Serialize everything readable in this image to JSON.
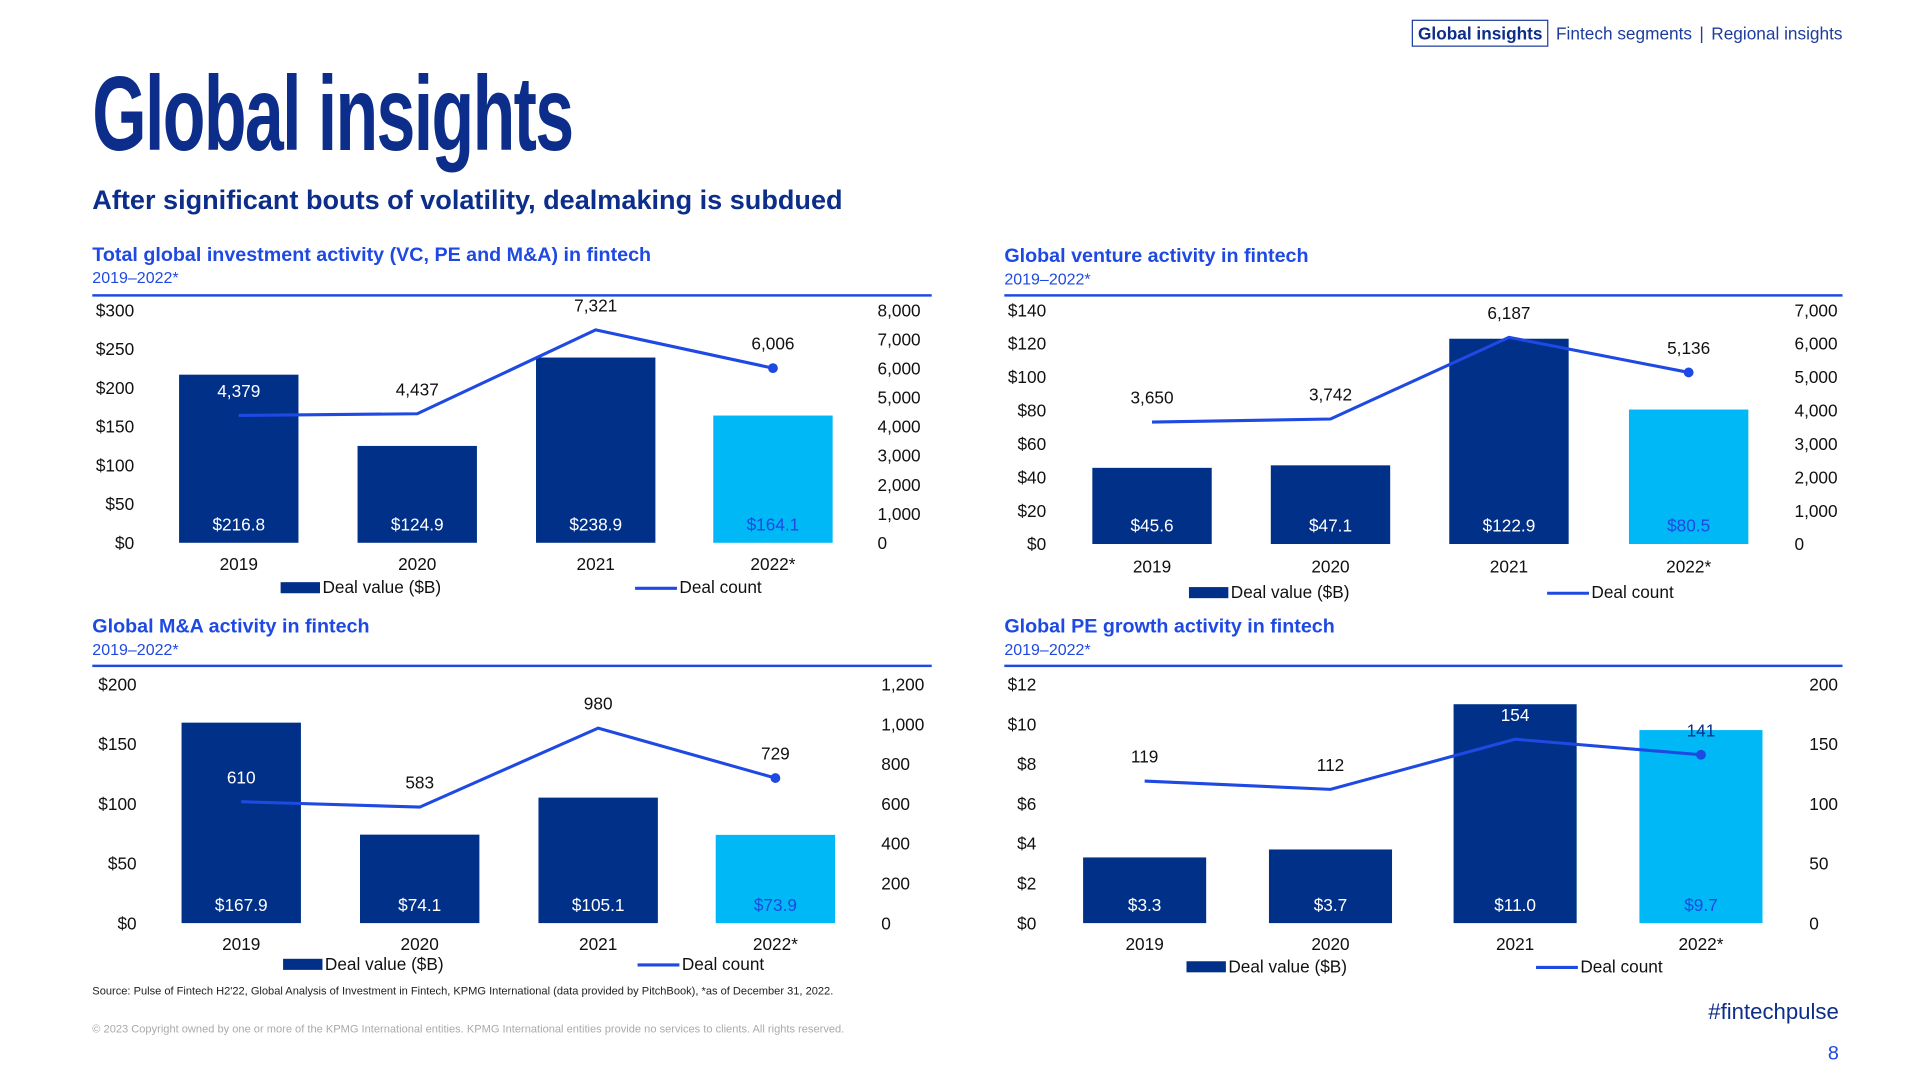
{
  "nav": {
    "items": [
      "Global insights",
      "Fintech segments",
      "Regional insights"
    ],
    "separator": "|",
    "active": 0
  },
  "page_title": "Global insights",
  "subtitle": "After significant bouts of volatility, dealmaking is subdued",
  "colors": {
    "navy": "#003087",
    "cyan": "#00b8f5",
    "line": "#1e49e2",
    "title_blue": "#1e49e2",
    "dark_blue": "#0c2d8a"
  },
  "chart_data": [
    {
      "type": "bar+line",
      "title": "Total global investment activity (VC, PE and M&A) in fintech",
      "subtitle": "2019–2022*",
      "categories": [
        "2019",
        "2020",
        "2021",
        "2022*"
      ],
      "series": [
        {
          "name": "Deal value ($B)",
          "type": "bar",
          "axis": "left",
          "values": [
            216.8,
            124.9,
            238.9,
            164.1
          ],
          "labels": [
            "$216.8",
            "$124.9",
            "$238.9",
            "$164.1"
          ]
        },
        {
          "name": "Deal count",
          "type": "line",
          "axis": "right",
          "values": [
            4379,
            4437,
            7321,
            6006
          ],
          "labels": [
            "4,379",
            "4,437",
            "7,321",
            "6,006"
          ]
        }
      ],
      "left_axis": {
        "ylim": [
          0,
          300
        ],
        "ticks": [
          "$0",
          "$50",
          "$100",
          "$150",
          "$200",
          "$250",
          "$300"
        ]
      },
      "right_axis": {
        "ylim": [
          0,
          8000
        ],
        "ticks": [
          "0",
          "1,000",
          "2,000",
          "3,000",
          "4,000",
          "5,000",
          "6,000",
          "7,000",
          "8,000"
        ]
      },
      "legend": "bottom"
    },
    {
      "type": "bar+line",
      "title": "Global venture activity in fintech",
      "subtitle": "2019–2022*",
      "categories": [
        "2019",
        "2020",
        "2021",
        "2022*"
      ],
      "series": [
        {
          "name": "Deal value ($B)",
          "type": "bar",
          "axis": "left",
          "values": [
            45.6,
            47.1,
            122.9,
            80.5
          ],
          "labels": [
            "$45.6",
            "$47.1",
            "$122.9",
            "$80.5"
          ]
        },
        {
          "name": "Deal count",
          "type": "line",
          "axis": "right",
          "values": [
            3650,
            3742,
            6187,
            5136
          ],
          "labels": [
            "3,650",
            "3,742",
            "6,187",
            "5,136"
          ]
        }
      ],
      "left_axis": {
        "ylim": [
          0,
          140
        ],
        "ticks": [
          "$0",
          "$20",
          "$40",
          "$60",
          "$80",
          "$100",
          "$120",
          "$140"
        ]
      },
      "right_axis": {
        "ylim": [
          0,
          7000
        ],
        "ticks": [
          "0",
          "1,000",
          "2,000",
          "3,000",
          "4,000",
          "5,000",
          "6,000",
          "7,000"
        ]
      },
      "legend": "bottom"
    },
    {
      "type": "bar+line",
      "title": "Global M&A activity in fintech",
      "subtitle": "2019–2022*",
      "categories": [
        "2019",
        "2020",
        "2021",
        "2022*"
      ],
      "series": [
        {
          "name": "Deal value ($B)",
          "type": "bar",
          "axis": "left",
          "values": [
            167.9,
            74.1,
            105.1,
            73.9
          ],
          "labels": [
            "$167.9",
            "$74.1",
            "$105.1",
            "$73.9"
          ]
        },
        {
          "name": "Deal count",
          "type": "line",
          "axis": "right",
          "values": [
            610,
            583,
            980,
            729
          ],
          "labels": [
            "610",
            "583",
            "980",
            "729"
          ]
        }
      ],
      "left_axis": {
        "ylim": [
          0,
          200
        ],
        "ticks": [
          "$0",
          "$50",
          "$100",
          "$150",
          "$200"
        ]
      },
      "right_axis": {
        "ylim": [
          0,
          1200
        ],
        "ticks": [
          "0",
          "200",
          "400",
          "600",
          "800",
          "1,000",
          "1,200"
        ]
      },
      "legend": "bottom"
    },
    {
      "type": "bar+line",
      "title": "Global PE growth activity in fintech",
      "subtitle": "2019–2022*",
      "categories": [
        "2019",
        "2020",
        "2021",
        "2022*"
      ],
      "series": [
        {
          "name": "Deal value ($B)",
          "type": "bar",
          "axis": "left",
          "values": [
            3.3,
            3.7,
            11.0,
            9.7
          ],
          "labels": [
            "$3.3",
            "$3.7",
            "$11.0",
            "$9.7"
          ]
        },
        {
          "name": "Deal count",
          "type": "line",
          "axis": "right",
          "values": [
            119,
            112,
            154,
            141
          ],
          "labels": [
            "119",
            "112",
            "154",
            "141"
          ]
        }
      ],
      "left_axis": {
        "ylim": [
          0,
          12
        ],
        "ticks": [
          "$0",
          "$2",
          "$4",
          "$6",
          "$8",
          "$10",
          "$12"
        ]
      },
      "right_axis": {
        "ylim": [
          0,
          200
        ],
        "ticks": [
          "0",
          "50",
          "100",
          "150",
          "200"
        ]
      },
      "legend": "bottom"
    }
  ],
  "footer": {
    "source": "Source: Pulse of Fintech H2'22, Global Analysis of Investment in Fintech, KPMG International (data provided by PitchBook), *as of December 31, 2022.",
    "copyright": "© 2023 Copyright owned by one or more of the KPMG International entities. KPMG International entities provide no services to clients. All rights reserved.",
    "hashtag": "#fintechpulse",
    "page_number": "8"
  }
}
